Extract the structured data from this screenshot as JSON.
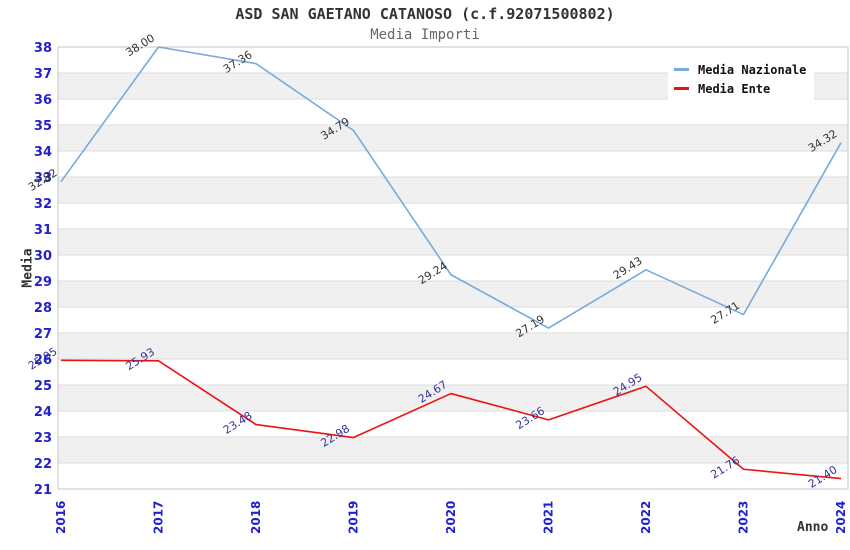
{
  "chart": {
    "title": "ASD SAN GAETANO CATANOSO (c.f.92071500802)",
    "subtitle": "Media Importi",
    "xlabel": "Anno",
    "ylabel": "Media"
  },
  "chart_data": {
    "type": "line",
    "x": [
      2016,
      2017,
      2018,
      2019,
      2020,
      2021,
      2022,
      2023,
      2024
    ],
    "series": [
      {
        "name": "Media Nazionale",
        "color": "#77aadd",
        "label_color": "#333333",
        "values": [
          32.82,
          38.0,
          37.36,
          34.79,
          29.24,
          27.19,
          29.43,
          27.71,
          34.32
        ]
      },
      {
        "name": "Media Ente",
        "color": "#ee1111",
        "label_color": "#333399",
        "values": [
          25.95,
          25.93,
          23.48,
          22.98,
          24.67,
          23.66,
          24.95,
          21.76,
          21.4
        ]
      }
    ],
    "ylim": [
      21,
      38
    ],
    "y_tick_step": 1,
    "value_label_decimals": 2,
    "grid": "horizontal-stripes",
    "legend_position": "top-right",
    "colors": {
      "tick_label": "#2222cc",
      "stripe": "#f0f0f0",
      "gridline": "#dcdcdc",
      "plot_border": "#c4c4c4",
      "background": "#ffffff"
    }
  }
}
